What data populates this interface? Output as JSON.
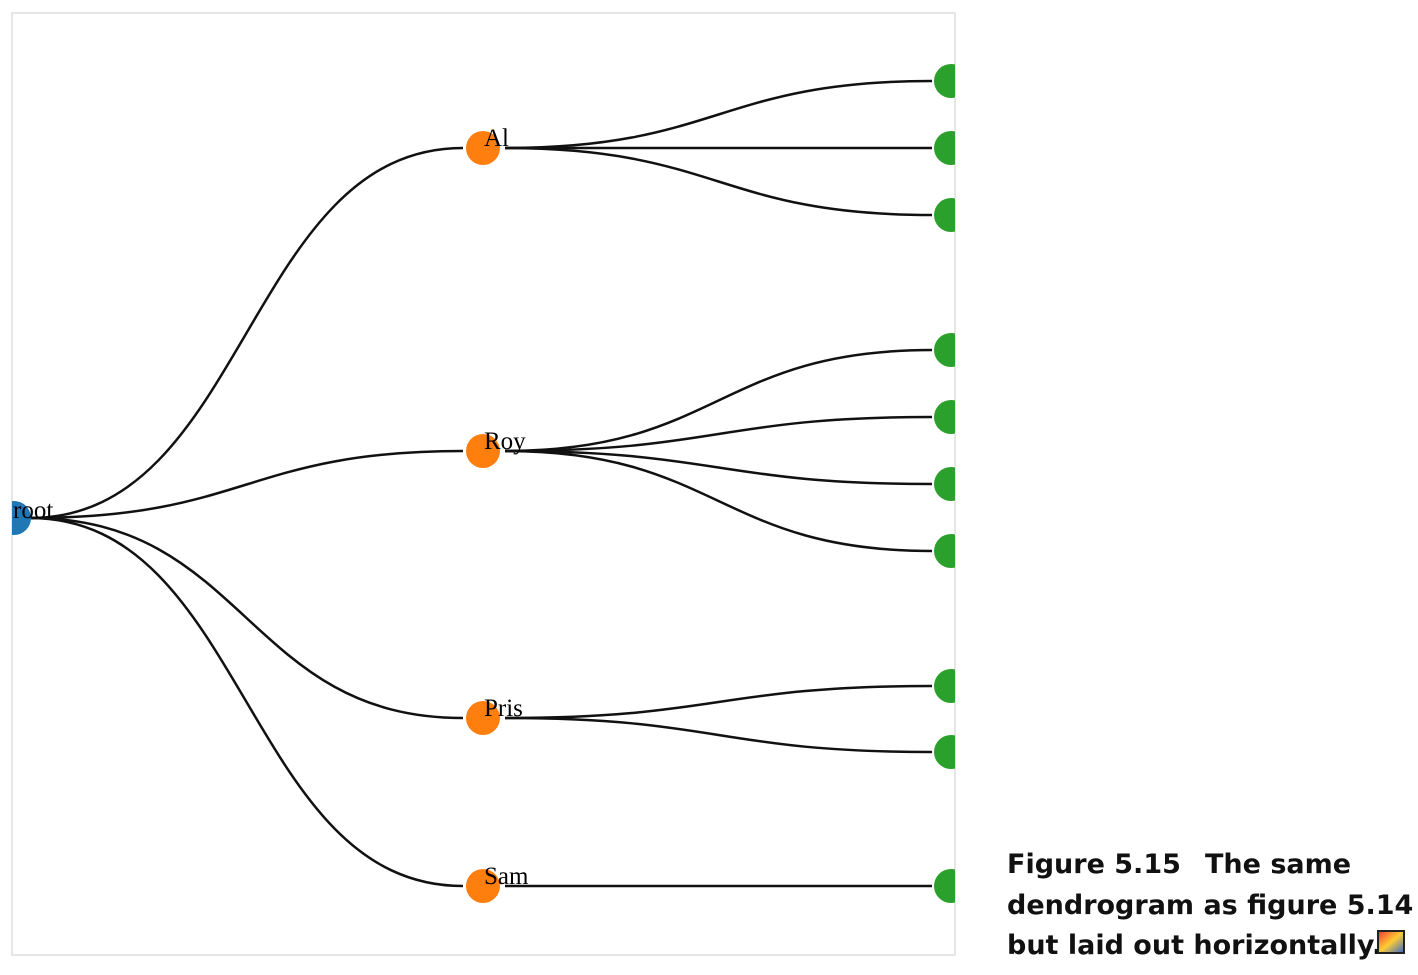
{
  "tree": {
    "root": {
      "label": "root"
    },
    "branches": [
      {
        "label": "Al"
      },
      {
        "label": "Roy"
      },
      {
        "label": "Pris"
      },
      {
        "label": "Sam"
      }
    ]
  },
  "caption": {
    "label": "Figure 5.15",
    "lines": [
      "The same",
      "dendrogram as figure 5.14",
      "but laid out horizontally."
    ]
  }
}
